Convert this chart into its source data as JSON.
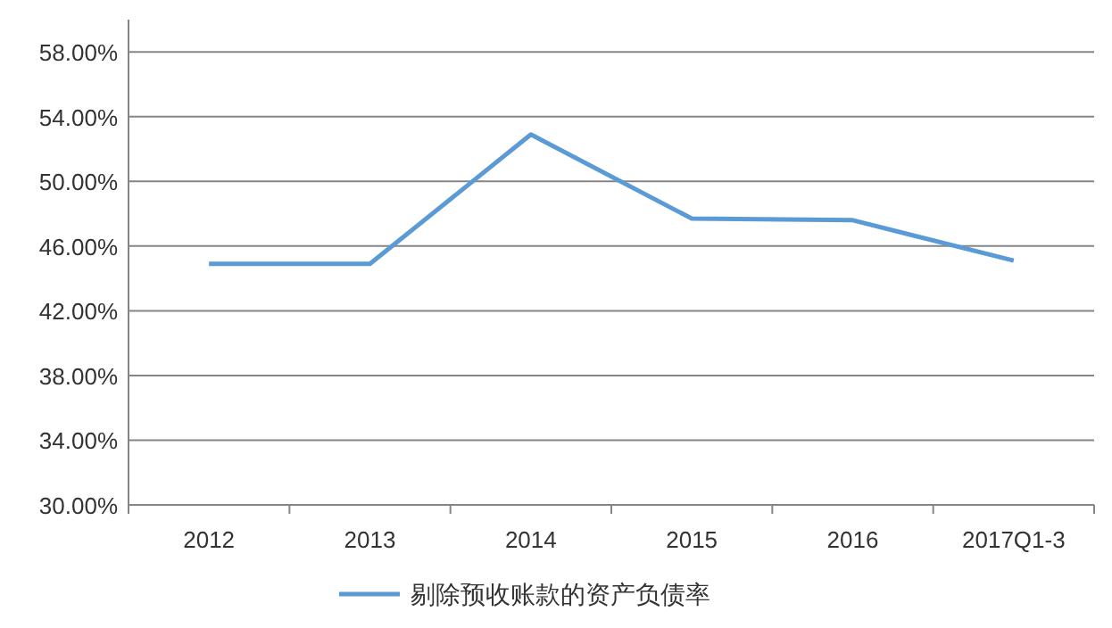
{
  "chart_data": {
    "type": "line",
    "categories": [
      "2012",
      "2013",
      "2014",
      "2015",
      "2016",
      "2017Q1-3"
    ],
    "series": [
      {
        "name": "剔除预收账款的资产负债率",
        "color": "#5b9bd5",
        "values": [
          44.9,
          44.9,
          52.9,
          47.7,
          47.6,
          45.1
        ]
      }
    ],
    "ylim": [
      30,
      60
    ],
    "yticks": [
      {
        "value": 30,
        "label": "30.00%"
      },
      {
        "value": 34,
        "label": "34.00%"
      },
      {
        "value": 38,
        "label": "38.00%"
      },
      {
        "value": 42,
        "label": "42.00%"
      },
      {
        "value": 46,
        "label": "46.00%"
      },
      {
        "value": 50,
        "label": "50.00%"
      },
      {
        "value": 54,
        "label": "54.00%"
      },
      {
        "value": 58,
        "label": "58.00%"
      }
    ],
    "grid": "y",
    "legend": "bottom",
    "marker": "none",
    "line_style": "solid"
  }
}
